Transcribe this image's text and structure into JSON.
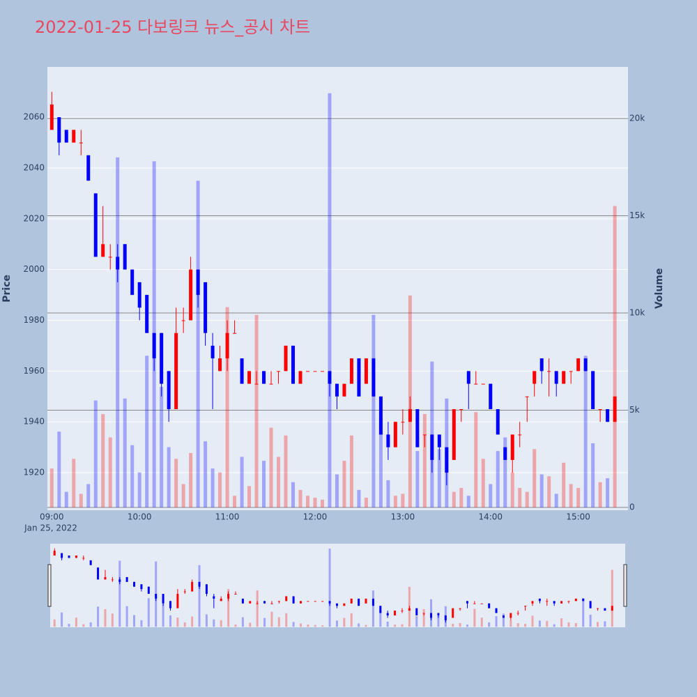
{
  "chart_data": {
    "type": "candlestick",
    "title": "2022-01-25 다보링크 뉴스_공시 차트",
    "y_label": "Price",
    "y2_label": "Volume",
    "x_date_label": "Jan 25, 2022",
    "increasing_color": "#ff0000",
    "decreasing_color": "#0000ff",
    "x": [
      "2022-01-25 09:00",
      "2022-01-25 09:05",
      "2022-01-25 09:10",
      "2022-01-25 09:15",
      "2022-01-25 09:20",
      "2022-01-25 09:25",
      "2022-01-25 09:30",
      "2022-01-25 09:35",
      "2022-01-25 09:40",
      "2022-01-25 09:45",
      "2022-01-25 09:50",
      "2022-01-25 09:55",
      "2022-01-25 10:00",
      "2022-01-25 10:05",
      "2022-01-25 10:10",
      "2022-01-25 10:15",
      "2022-01-25 10:20",
      "2022-01-25 10:25",
      "2022-01-25 10:30",
      "2022-01-25 10:35",
      "2022-01-25 10:40",
      "2022-01-25 10:45",
      "2022-01-25 10:50",
      "2022-01-25 10:55",
      "2022-01-25 11:00",
      "2022-01-25 11:05",
      "2022-01-25 11:10",
      "2022-01-25 11:15",
      "2022-01-25 11:20",
      "2022-01-25 11:25",
      "2022-01-25 11:30",
      "2022-01-25 11:35",
      "2022-01-25 11:40",
      "2022-01-25 11:45",
      "2022-01-25 11:50",
      "2022-01-25 11:55",
      "2022-01-25 12:00",
      "2022-01-25 12:05",
      "2022-01-25 12:10",
      "2022-01-25 12:15",
      "2022-01-25 12:20",
      "2022-01-25 12:25",
      "2022-01-25 12:30",
      "2022-01-25 12:35",
      "2022-01-25 12:40",
      "2022-01-25 12:45",
      "2022-01-25 12:50",
      "2022-01-25 12:55",
      "2022-01-25 13:00",
      "2022-01-25 13:05",
      "2022-01-25 13:10",
      "2022-01-25 13:15",
      "2022-01-25 13:20",
      "2022-01-25 13:25",
      "2022-01-25 13:30",
      "2022-01-25 13:35",
      "2022-01-25 13:40",
      "2022-01-25 13:45",
      "2022-01-25 13:50",
      "2022-01-25 13:55",
      "2022-01-25 14:00",
      "2022-01-25 14:05",
      "2022-01-25 14:10",
      "2022-01-25 14:15",
      "2022-01-25 14:20",
      "2022-01-25 14:25",
      "2022-01-25 14:30",
      "2022-01-25 14:35",
      "2022-01-25 14:40",
      "2022-01-25 14:45",
      "2022-01-25 14:50",
      "2022-01-25 14:55",
      "2022-01-25 15:00",
      "2022-01-25 15:05",
      "2022-01-25 15:10",
      "2022-01-25 15:15",
      "2022-01-25 15:20",
      "2022-01-25 15:25"
    ],
    "open": [
      2055,
      2060,
      2055,
      2050,
      2050,
      2045,
      2030,
      2005,
      2005,
      2005,
      2010,
      2000,
      1995,
      1990,
      1975,
      1975,
      1960,
      1945,
      1980,
      1980,
      2000,
      1995,
      1970,
      1960,
      1965,
      1975,
      1965,
      1955,
      1955,
      1960,
      1955,
      1960,
      1960,
      1970,
      1955,
      1960,
      1960,
      1960,
      1960,
      1955,
      1950,
      1955,
      1965,
      1955,
      1965,
      1950,
      1935,
      1930,
      1940,
      1940,
      1945,
      1935,
      1935,
      1935,
      1930,
      1925,
      1945,
      1960,
      1955,
      1955,
      1955,
      1945,
      1930,
      1925,
      1935,
      1950,
      1955,
      1965,
      1960,
      1960,
      1955,
      1960,
      1960,
      1965,
      1960,
      1945,
      1945,
      1940
    ],
    "high": [
      2070,
      2060,
      2055,
      2055,
      2055,
      2045,
      2030,
      2025,
      2010,
      2010,
      2010,
      2000,
      1995,
      1990,
      1975,
      1975,
      1960,
      1985,
      1985,
      2005,
      2000,
      1995,
      1975,
      1970,
      1980,
      1980,
      1965,
      1960,
      1960,
      1960,
      1960,
      1960,
      1970,
      1970,
      1960,
      1960,
      1960,
      1960,
      1960,
      1955,
      1955,
      1965,
      1965,
      1965,
      1965,
      1950,
      1940,
      1940,
      1945,
      1950,
      1945,
      1935,
      1935,
      1935,
      1930,
      1945,
      1945,
      1960,
      1960,
      1955,
      1955,
      1945,
      1930,
      1935,
      1940,
      1950,
      1960,
      1965,
      1965,
      1960,
      1960,
      1960,
      1965,
      1965,
      1960,
      1945,
      1945,
      1950
    ],
    "low": [
      2055,
      2045,
      2050,
      2050,
      2045,
      2035,
      2005,
      2005,
      2000,
      1995,
      2000,
      1990,
      1980,
      1975,
      1960,
      1950,
      1940,
      1945,
      1975,
      1980,
      1985,
      1970,
      1945,
      1960,
      1960,
      1975,
      1955,
      1955,
      1955,
      1955,
      1955,
      1955,
      1960,
      1955,
      1955,
      1960,
      1960,
      1960,
      1950,
      1945,
      1950,
      1955,
      1950,
      1955,
      1950,
      1935,
      1925,
      1930,
      1935,
      1940,
      1930,
      1930,
      1920,
      1925,
      1915,
      1925,
      1940,
      1945,
      1955,
      1955,
      1945,
      1935,
      1925,
      1920,
      1930,
      1940,
      1950,
      1955,
      1950,
      1950,
      1955,
      1955,
      1960,
      1960,
      1945,
      1940,
      1940,
      1940
    ],
    "close": [
      2065,
      2050,
      2050,
      2055,
      2050,
      2035,
      2005,
      2010,
      2005,
      2000,
      2000,
      1990,
      1985,
      1975,
      1965,
      1955,
      1945,
      1975,
      1980,
      2000,
      1990,
      1975,
      1965,
      1965,
      1975,
      1975,
      1955,
      1960,
      1955,
      1955,
      1955,
      1960,
      1970,
      1955,
      1960,
      1960,
      1960,
      1960,
      1955,
      1950,
      1955,
      1965,
      1950,
      1965,
      1950,
      1935,
      1930,
      1940,
      1940,
      1945,
      1930,
      1935,
      1925,
      1930,
      1920,
      1945,
      1945,
      1955,
      1955,
      1955,
      1945,
      1935,
      1925,
      1935,
      1935,
      1950,
      1960,
      1960,
      1960,
      1955,
      1960,
      1960,
      1965,
      1960,
      1945,
      1945,
      1940,
      1950
    ],
    "volume": [
      2000,
      3900,
      800,
      2500,
      700,
      1200,
      5500,
      4800,
      3600,
      18000,
      5600,
      3200,
      1800,
      7800,
      17800,
      6200,
      3100,
      2500,
      1200,
      2800,
      16800,
      3400,
      2000,
      1800,
      10300,
      600,
      2600,
      1100,
      9900,
      2400,
      4100,
      2600,
      3700,
      1300,
      900,
      600,
      500,
      400,
      21300,
      1700,
      2400,
      3700,
      900,
      500,
      9900,
      4600,
      1400,
      600,
      700,
      10900,
      2900,
      4800,
      7500,
      3000,
      5600,
      800,
      1000,
      600,
      4900,
      2500,
      1200,
      2900,
      3600,
      1800,
      1000,
      800,
      3000,
      1700,
      1600,
      700,
      2300,
      1200,
      1000,
      7800,
      3300,
      1300,
      1500,
      15500
    ],
    "xlim": [
      "2022-01-25 08:57",
      "2022-01-25 15:34"
    ],
    "xticks": [
      {
        "value": "2022-01-25 09:00",
        "label": "09:00"
      },
      {
        "value": "2022-01-25 10:00",
        "label": "10:00"
      },
      {
        "value": "2022-01-25 11:00",
        "label": "11:00"
      },
      {
        "value": "2022-01-25 12:00",
        "label": "12:00"
      },
      {
        "value": "2022-01-25 13:00",
        "label": "13:00"
      },
      {
        "value": "2022-01-25 14:00",
        "label": "14:00"
      },
      {
        "value": "2022-01-25 15:00",
        "label": "15:00"
      }
    ],
    "ylim": [
      1905.2,
      2079.8
    ],
    "yticks": [
      1920,
      1940,
      1960,
      1980,
      2000,
      2020,
      2040,
      2060
    ],
    "y2lim": [
      -143,
      22652
    ],
    "y2ticks": [
      0,
      {
        "value": 5000,
        "label": "5k"
      },
      {
        "value": 10000,
        "label": "10k"
      },
      {
        "value": 15000,
        "label": "15k"
      },
      {
        "value": 20000,
        "label": "20k"
      }
    ],
    "grid": true,
    "rangeslider": true
  }
}
